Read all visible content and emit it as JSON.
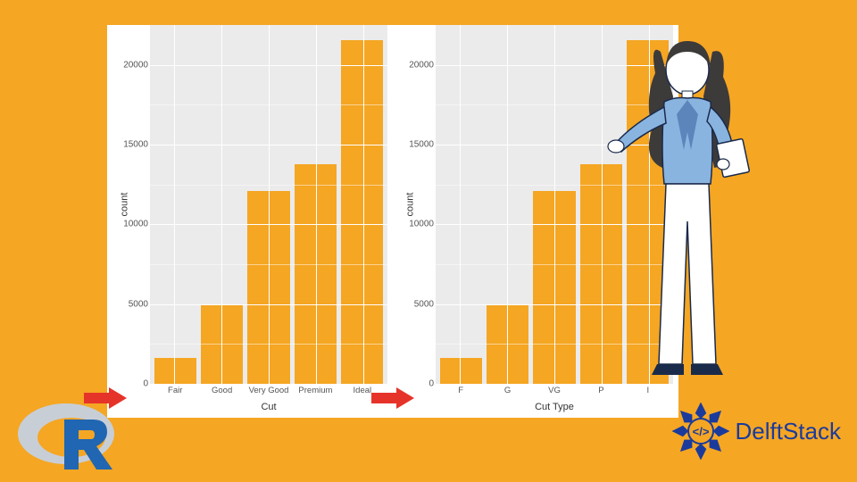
{
  "background_color": "#f5a623",
  "panel_bg": "#ffffff",
  "plot_bg": "#ebebeb",
  "grid_color": "#ffffff",
  "bar_color": "#f5a623",
  "arrow_color": "#e6332a",
  "chart_left": {
    "type": "bar",
    "ylabel": "count",
    "xlabel": "Cut",
    "ylim": [
      0,
      22500
    ],
    "yticks": [
      0,
      5000,
      10000,
      15000,
      20000
    ],
    "ytick_labels": [
      "0",
      "5000",
      "10000",
      "15000",
      "20000"
    ],
    "categories": [
      "Fair",
      "Good",
      "Very Good",
      "Premium",
      "Ideal"
    ],
    "values": [
      1610,
      4906,
      12082,
      13791,
      21551
    ],
    "label_fontsize": 11,
    "tick_fontsize": 10,
    "bar_width": 0.9
  },
  "chart_right": {
    "type": "bar",
    "ylabel": "count",
    "xlabel": "Cut Type",
    "ylim": [
      0,
      22500
    ],
    "yticks": [
      0,
      5000,
      10000,
      15000,
      20000
    ],
    "ytick_labels": [
      "0",
      "5000",
      "10000",
      "15000",
      "20000"
    ],
    "categories": [
      "F",
      "G",
      "VG",
      "P",
      "I"
    ],
    "values": [
      1610,
      4906,
      12082,
      13791,
      21551
    ],
    "label_fontsize": 11,
    "tick_fontsize": 10,
    "bar_width": 0.9
  },
  "logos": {
    "r": "R-language-logo",
    "delftstack_text": "DelftStack",
    "delftstack_color": "#1b3b9c"
  },
  "woman_palette": {
    "hair": "#3d3a3a",
    "skin": "#ffffff",
    "jacket": "#8ab4e0",
    "jacket_shadow": "#5c86bb",
    "pants": "#ffffff",
    "outline": "#1a2a4a"
  }
}
